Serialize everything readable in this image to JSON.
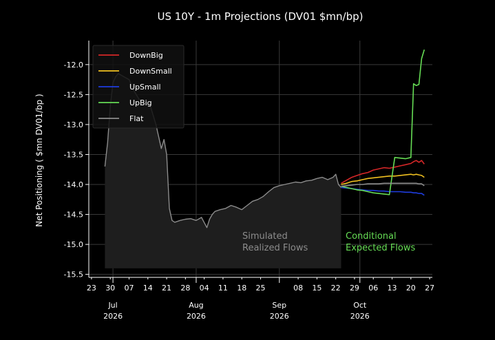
{
  "chart_data": {
    "type": "line",
    "title": "US 10Y - 1m Projections (DV01 $mn/bp)",
    "ylabel": "Net Positioning  ( $mn DV01/bp )",
    "xlabel": "",
    "ylim": [
      -15.55,
      -11.6
    ],
    "yticks": [
      -12.0,
      -12.5,
      -13.0,
      -13.5,
      -14.0,
      -14.5,
      -15.0,
      -15.5
    ],
    "ytick_labels": [
      "-12.0",
      "-12.5",
      "-13.0",
      "-13.5",
      "-14.0",
      "-14.5",
      "-15.0",
      "-15.5"
    ],
    "xlim": [
      "2026-06-22",
      "2026-10-28"
    ],
    "day_ticks": [
      {
        "date": "2026-06-23",
        "label": "23"
      },
      {
        "date": "2026-06-30",
        "label": "30"
      },
      {
        "date": "2026-07-07",
        "label": "07"
      },
      {
        "date": "2026-07-14",
        "label": "14"
      },
      {
        "date": "2026-07-21",
        "label": "21"
      },
      {
        "date": "2026-07-28",
        "label": "28"
      },
      {
        "date": "2026-08-04",
        "label": "04"
      },
      {
        "date": "2026-08-11",
        "label": "11"
      },
      {
        "date": "2026-08-18",
        "label": "18"
      },
      {
        "date": "2026-08-25",
        "label": "25"
      },
      {
        "date": "2026-09-08",
        "label": "08"
      },
      {
        "date": "2026-09-15",
        "label": "15"
      },
      {
        "date": "2026-09-22",
        "label": "22"
      },
      {
        "date": "2026-09-29",
        "label": "29"
      },
      {
        "date": "2026-10-06",
        "label": "06"
      },
      {
        "date": "2026-10-13",
        "label": "13"
      },
      {
        "date": "2026-10-20",
        "label": "20"
      },
      {
        "date": "2026-10-27",
        "label": "27"
      }
    ],
    "month_ticks": [
      {
        "date": "2026-07-01",
        "month": "Jul",
        "year": "2026"
      },
      {
        "date": "2026-08-01",
        "month": "Aug",
        "year": "2026"
      },
      {
        "date": "2026-09-01",
        "month": "Sep",
        "year": "2026"
      },
      {
        "date": "2026-10-01",
        "month": "Oct",
        "year": "2026"
      }
    ],
    "grid": true,
    "legend": {
      "position": "top-left",
      "entries": [
        {
          "name": "DownBig",
          "color": "#d62728"
        },
        {
          "name": "DownSmall",
          "color": "#f0c020"
        },
        {
          "name": "UpSmall",
          "color": "#1f3de0"
        },
        {
          "name": "UpBig",
          "color": "#66dd55"
        },
        {
          "name": "Flat",
          "color": "#8c8c8c"
        }
      ]
    },
    "realized": {
      "label_line1": "Simulated",
      "label_line2": "Realized Flows",
      "color": "#8c8c8c",
      "fill_color": "#1e1e1e",
      "fill_bottom": -15.4,
      "x": [
        "2026-06-28",
        "2026-06-29",
        "2026-06-30",
        "2026-07-01",
        "2026-07-02",
        "2026-07-03",
        "2026-07-05",
        "2026-07-07",
        "2026-07-09",
        "2026-07-11",
        "2026-07-13",
        "2026-07-15",
        "2026-07-16",
        "2026-07-17",
        "2026-07-18",
        "2026-07-19",
        "2026-07-20",
        "2026-07-21",
        "2026-07-22",
        "2026-07-23",
        "2026-07-24",
        "2026-07-26",
        "2026-07-28",
        "2026-07-30",
        "2026-08-01",
        "2026-08-03",
        "2026-08-05",
        "2026-08-06",
        "2026-08-07",
        "2026-08-08",
        "2026-08-10",
        "2026-08-12",
        "2026-08-14",
        "2026-08-16",
        "2026-08-18",
        "2026-08-20",
        "2026-08-22",
        "2026-08-24",
        "2026-08-26",
        "2026-08-28",
        "2026-08-30",
        "2026-09-01",
        "2026-09-03",
        "2026-09-05",
        "2026-09-07",
        "2026-09-09",
        "2026-09-11",
        "2026-09-13",
        "2026-09-15",
        "2026-09-17",
        "2026-09-19",
        "2026-09-21",
        "2026-09-22",
        "2026-09-23",
        "2026-09-24"
      ],
      "y": [
        -13.7,
        -13.3,
        -12.7,
        -12.3,
        -12.2,
        -12.15,
        -12.2,
        -12.25,
        -12.45,
        -12.6,
        -12.65,
        -12.7,
        -12.85,
        -13.0,
        -13.2,
        -13.4,
        -13.25,
        -13.5,
        -14.4,
        -14.6,
        -14.63,
        -14.6,
        -14.58,
        -14.57,
        -14.6,
        -14.55,
        -14.72,
        -14.58,
        -14.5,
        -14.45,
        -14.42,
        -14.4,
        -14.35,
        -14.38,
        -14.42,
        -14.35,
        -14.28,
        -14.25,
        -14.2,
        -14.12,
        -14.05,
        -14.02,
        -14.0,
        -13.98,
        -13.96,
        -13.97,
        -13.94,
        -13.93,
        -13.9,
        -13.88,
        -13.92,
        -13.88,
        -13.83,
        -14.0,
        -14.05
      ]
    },
    "projections": {
      "label_line1": "Conditional",
      "label_line2": "Expected Flows",
      "label_color": "#66dd55",
      "x": [
        "2026-09-24",
        "2026-09-26",
        "2026-09-28",
        "2026-09-30",
        "2026-10-02",
        "2026-10-04",
        "2026-10-06",
        "2026-10-08",
        "2026-10-10",
        "2026-10-12",
        "2026-10-14",
        "2026-10-16",
        "2026-10-18",
        "2026-10-20",
        "2026-10-21",
        "2026-10-22",
        "2026-10-23",
        "2026-10-24",
        "2026-10-25"
      ],
      "series": [
        {
          "name": "DownBig",
          "values": [
            -13.98,
            -13.93,
            -13.88,
            -13.85,
            -13.82,
            -13.8,
            -13.76,
            -13.74,
            -13.72,
            -13.73,
            -13.71,
            -13.69,
            -13.67,
            -13.65,
            -13.62,
            -13.6,
            -13.63,
            -13.6,
            -13.66
          ]
        },
        {
          "name": "DownSmall",
          "values": [
            -14.0,
            -13.98,
            -13.95,
            -13.94,
            -13.92,
            -13.9,
            -13.89,
            -13.88,
            -13.87,
            -13.86,
            -13.86,
            -13.85,
            -13.84,
            -13.83,
            -13.84,
            -13.83,
            -13.84,
            -13.85,
            -13.88
          ]
        },
        {
          "name": "UpSmall",
          "values": [
            -14.05,
            -14.06,
            -14.07,
            -14.08,
            -14.09,
            -14.1,
            -14.1,
            -14.11,
            -14.11,
            -14.12,
            -14.12,
            -14.12,
            -14.13,
            -14.13,
            -14.14,
            -14.14,
            -14.15,
            -14.15,
            -14.18
          ]
        },
        {
          "name": "UpBig",
          "values": [
            -14.03,
            -14.05,
            -14.07,
            -14.09,
            -14.1,
            -14.12,
            -14.14,
            -14.15,
            -14.16,
            -14.17,
            -13.55,
            -13.56,
            -13.57,
            -13.55,
            -12.32,
            -12.35,
            -12.33,
            -11.9,
            -11.75
          ]
        },
        {
          "name": "Flat",
          "values": [
            -14.03,
            -14.02,
            -14.01,
            -14.0,
            -14.0,
            -13.99,
            -13.99,
            -13.99,
            -13.98,
            -13.98,
            -13.98,
            -13.98,
            -13.98,
            -13.98,
            -13.98,
            -13.98,
            -13.99,
            -13.99,
            -14.02
          ]
        }
      ]
    }
  }
}
